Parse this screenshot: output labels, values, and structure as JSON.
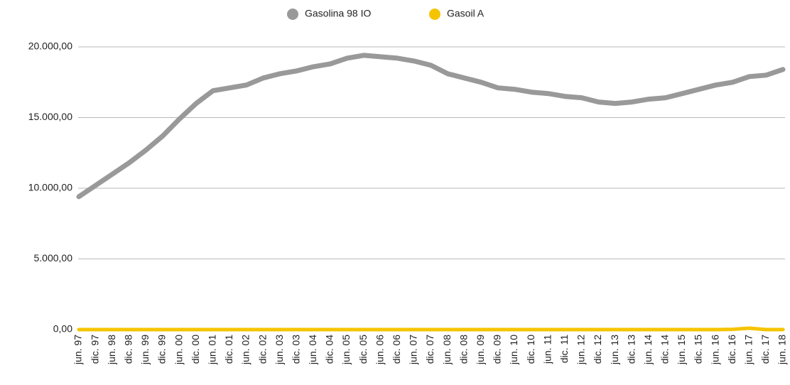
{
  "chart_data": {
    "type": "line",
    "categories": [
      "jun. 97",
      "dic. 97",
      "jun. 98",
      "dic. 98",
      "jun. 99",
      "dic. 99",
      "jun. 00",
      "dic. 00",
      "jun. 01",
      "dic. 01",
      "jun. 02",
      "dic. 02",
      "jun. 03",
      "dic. 03",
      "jun. 04",
      "dic. 04",
      "jun. 05",
      "dic. 05",
      "jun. 06",
      "dic. 06",
      "jun. 07",
      "dic. 07",
      "jun. 08",
      "dic. 08",
      "jun. 09",
      "dic. 09",
      "jun. 10",
      "dic. 10",
      "jun. 11",
      "dic. 11",
      "jun. 12",
      "dic. 12",
      "jun. 13",
      "dic. 13",
      "jun. 14",
      "dic. 14",
      "jun. 15",
      "dic. 15",
      "jun. 16",
      "dic. 16",
      "jun. 17",
      "dic. 17",
      "jun. 18"
    ],
    "series": [
      {
        "name": "Gasolina 98 IO",
        "color": "#999999",
        "values": [
          9400,
          10200,
          11000,
          11800,
          12700,
          13700,
          14900,
          16000,
          16900,
          17100,
          17300,
          17800,
          18100,
          18300,
          18600,
          18800,
          19200,
          19400,
          19300,
          19200,
          19000,
          18700,
          18100,
          17800,
          17500,
          17100,
          17000,
          16800,
          16700,
          16500,
          16400,
          16100,
          16000,
          16100,
          16300,
          16400,
          16700,
          17000,
          17300,
          17500,
          17900,
          18000,
          18400
        ]
      },
      {
        "name": "Gasoil A",
        "color": "#f5c400",
        "values": [
          0,
          0,
          0,
          0,
          0,
          0,
          0,
          0,
          0,
          0,
          0,
          0,
          0,
          0,
          0,
          0,
          0,
          0,
          0,
          0,
          0,
          0,
          0,
          0,
          0,
          0,
          0,
          0,
          0,
          0,
          0,
          0,
          0,
          0,
          0,
          0,
          0,
          0,
          0,
          20,
          100,
          0,
          0
        ]
      }
    ],
    "ylim": [
      0,
      20000
    ],
    "yticks": [
      {
        "value": 0,
        "label": "0,00"
      },
      {
        "value": 5000,
        "label": "5.000,00"
      },
      {
        "value": 10000,
        "label": "10.000,00"
      },
      {
        "value": 15000,
        "label": "15.000,00"
      },
      {
        "value": 20000,
        "label": "20.000,00"
      }
    ],
    "grid": true,
    "legend": "top"
  }
}
